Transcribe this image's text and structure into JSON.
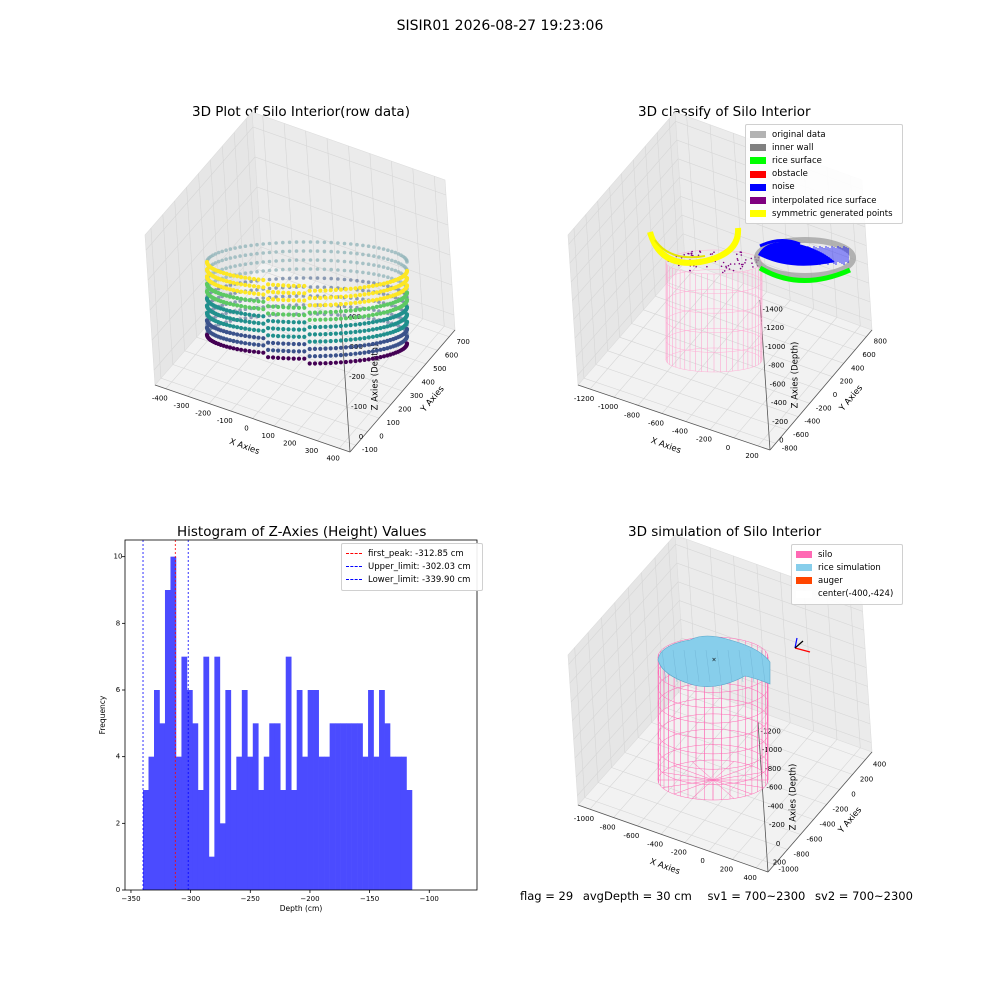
{
  "suptitle": "SISIR01 2026-08-27 19:23:06",
  "panels": [
    {
      "title": "3D Plot of Silo Interior(row data)",
      "x_label": "X Axies",
      "y_label": "Y Axies",
      "z_label": "Z Axies (Depth)",
      "x_ticks": [
        "-400",
        "-300",
        "-200",
        "-100",
        "0",
        "100",
        "200",
        "300",
        "400"
      ],
      "y_ticks": [
        "-100",
        "0",
        "100",
        "200",
        "300",
        "400",
        "500",
        "600",
        "700"
      ],
      "z_ticks": [
        "-400",
        "-300",
        "-200",
        "-100",
        "0"
      ]
    },
    {
      "title": "3D classify of Silo Interior",
      "x_label": "X Axies",
      "y_label": "Y Axies",
      "z_label": "Z Axies (Depth)",
      "x_ticks": [
        "-1200",
        "-1000",
        "-800",
        "-600",
        "-400",
        "-200",
        "0",
        "200"
      ],
      "y_ticks": [
        "-800",
        "-600",
        "-400",
        "-200",
        "0",
        "200",
        "400",
        "600",
        "800"
      ],
      "z_ticks": [
        "-1400",
        "-1200",
        "-1000",
        "-800",
        "-600",
        "-400",
        "-200",
        "0"
      ],
      "legend": [
        {
          "label": "original data",
          "color": "#b3b3b3"
        },
        {
          "label": "inner wall",
          "color": "#808080"
        },
        {
          "label": "rice surface",
          "color": "#00ff00"
        },
        {
          "label": "obstacle",
          "color": "#ff0000"
        },
        {
          "label": "noise",
          "color": "#0000ff"
        },
        {
          "label": "interpolated rice surface",
          "color": "#800080"
        },
        {
          "label": "symmetric generated points",
          "color": "#ffff00"
        }
      ]
    },
    {
      "title": "3D simulation of Silo Interior",
      "x_label": "X Axies",
      "y_label": "Y Axies",
      "z_label": "Z Axies (Depth)",
      "x_ticks": [
        "-1000",
        "-800",
        "-600",
        "-400",
        "-200",
        "0",
        "200",
        "400"
      ],
      "y_ticks": [
        "-1000",
        "-800",
        "-600",
        "-400",
        "-200",
        "0",
        "200",
        "400"
      ],
      "z_ticks": [
        "-1200",
        "-1000",
        "-800",
        "-600",
        "-400",
        "-200",
        "0",
        "200"
      ],
      "legend": [
        {
          "label": "silo",
          "color": "#ff69b4"
        },
        {
          "label": "rice simulation",
          "color": "#87ceeb"
        },
        {
          "label": "auger",
          "color": "#ff4500"
        },
        {
          "label": "center(-400,-424)",
          "color": "#ffffff"
        }
      ]
    }
  ],
  "chart_data": {
    "type": "bar",
    "title": "Histogram of Z-Axies (Height) Values",
    "xlabel": "Depth (cm)",
    "ylabel": "Frequency",
    "xlim": [
      -355,
      -60
    ],
    "ylim": [
      0,
      10.5
    ],
    "x_ticks": [
      -350,
      -300,
      -250,
      -200,
      -150,
      -100
    ],
    "y_ticks": [
      0,
      2,
      4,
      6,
      8,
      10
    ],
    "bins_start": -339.9,
    "bin_width": 4.6,
    "values": [
      3,
      4,
      6,
      5,
      9,
      10,
      4,
      7,
      6,
      5,
      3,
      7,
      1,
      7,
      2,
      6,
      3,
      4,
      6,
      4,
      5,
      3,
      4,
      5,
      5,
      3,
      7,
      3,
      6,
      4,
      6,
      6,
      4,
      4,
      5,
      5,
      5,
      5,
      5,
      5,
      4,
      6,
      4,
      6,
      5,
      4,
      4,
      4,
      3
    ],
    "vlines": [
      {
        "label": "first_peak: -312.85 cm",
        "x": -312.85,
        "color": "#ff0000"
      },
      {
        "label": "Upper_limit: -302.03 cm",
        "x": -302.03,
        "color": "#0000ff"
      },
      {
        "label": "Lower_limit: -339.90 cm",
        "x": -339.9,
        "color": "#0000ff"
      }
    ],
    "bar_color": "#4b4bff"
  },
  "footer": {
    "flag": "flag = 29",
    "avg_depth": "avgDepth = 30 cm",
    "sv1": "sv1 = 700~2300",
    "sv2": "sv2 = 700~2300"
  }
}
